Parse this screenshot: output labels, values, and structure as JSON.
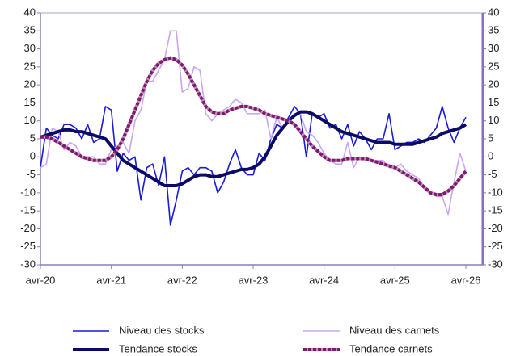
{
  "chart_data": {
    "type": "line",
    "categories": [
      "avr-20",
      null,
      null,
      null,
      null,
      null,
      null,
      null,
      null,
      null,
      null,
      null,
      "avr-21",
      null,
      null,
      null,
      null,
      null,
      null,
      null,
      null,
      null,
      null,
      null,
      "avr-22",
      null,
      null,
      null,
      null,
      null,
      null,
      null,
      null,
      null,
      null,
      null,
      "avr-23",
      null,
      null,
      null,
      null,
      null,
      null,
      null,
      null,
      null,
      null,
      null,
      "avr-24",
      null,
      null,
      null,
      null,
      null,
      null,
      null,
      null,
      null,
      null,
      null,
      "avr-25",
      null,
      null,
      null,
      null,
      null,
      null,
      null,
      null,
      null,
      null,
      null,
      "avr-26"
    ],
    "series": [
      {
        "name": "Niveau des stocks",
        "color": "#1a1ad8",
        "style": "thin",
        "values": [
          -3,
          8,
          6,
          5,
          9,
          9,
          8,
          5,
          9,
          4,
          5,
          14,
          13,
          -4,
          1,
          -1,
          0,
          -12,
          -3,
          -2,
          -8,
          0,
          -19,
          -12,
          -4,
          -3,
          -5,
          -3,
          -3,
          -4,
          -10,
          -7,
          -2,
          2,
          -3,
          -5,
          -5,
          1,
          -1,
          5,
          9,
          8,
          11,
          14,
          12,
          0,
          12,
          11,
          12,
          8,
          9,
          5,
          9,
          3,
          7,
          5,
          2,
          5,
          5,
          12,
          2,
          3,
          4,
          4,
          5,
          4,
          6,
          8,
          14,
          8,
          4,
          8,
          11
        ]
      },
      {
        "name": "Niveau des carnets",
        "color": "#c8a6f0",
        "style": "thin",
        "values": [
          -3,
          -2,
          8,
          7,
          2,
          4,
          3,
          0,
          0,
          0,
          -2,
          -2,
          2,
          3,
          4,
          1,
          10,
          13,
          21,
          21,
          24,
          27,
          35,
          35,
          18,
          19,
          25,
          24,
          12,
          10,
          12,
          13,
          14,
          16,
          15,
          12,
          12,
          12,
          13,
          5,
          11,
          8,
          10,
          12,
          12,
          7,
          6,
          4,
          1,
          -1,
          -2,
          -2,
          4,
          -3,
          0,
          -1,
          -1,
          -1,
          -1,
          -3,
          -3,
          -2,
          -4,
          -5,
          -6,
          -9,
          -10,
          -11,
          -11,
          -16,
          -7,
          1,
          -4
        ]
      },
      {
        "name": "Tendance stocks",
        "color": "#0b0b66",
        "style": "bold",
        "values": [
          5.5,
          6,
          6.5,
          7,
          7.5,
          7.5,
          7,
          7,
          6.5,
          6,
          5.5,
          5,
          3,
          1,
          -1,
          -2,
          -3,
          -4,
          -5,
          -6,
          -7,
          -8,
          -8,
          -8,
          -7.5,
          -6.5,
          -5.5,
          -5,
          -5,
          -5.5,
          -5.5,
          -5,
          -4.5,
          -4,
          -3.5,
          -3.5,
          -3,
          -2,
          0,
          3,
          6,
          8,
          10,
          11.5,
          12.5,
          12.5,
          12,
          11,
          10,
          9,
          8,
          7,
          6.5,
          6,
          5.5,
          5,
          4.5,
          4,
          4,
          4,
          3.5,
          3.5,
          3.5,
          3.5,
          4,
          4.5,
          5,
          5.5,
          6.5,
          7,
          7.5,
          8,
          9
        ]
      },
      {
        "name": "Tendance carnets",
        "color": "#7b1a6e",
        "style": "dashed",
        "values": [
          5.5,
          5.5,
          5,
          4,
          3,
          2,
          1,
          0,
          -0.5,
          -1,
          -1,
          -1,
          0,
          2,
          5,
          9,
          13,
          17,
          21,
          24,
          26,
          27,
          27.5,
          27,
          25.5,
          23,
          20,
          17,
          14,
          12.5,
          12,
          12,
          13,
          13.5,
          14,
          14,
          13.5,
          13,
          12,
          11.5,
          11,
          10.5,
          10,
          9,
          7,
          5,
          3,
          1.5,
          0,
          -1,
          -1,
          -1,
          -0.5,
          -0.5,
          -0.5,
          -0.5,
          -1,
          -1.5,
          -2,
          -2.5,
          -3,
          -4,
          -5,
          -6,
          -7,
          -8.5,
          -10,
          -10.5,
          -10.5,
          -9.5,
          -8,
          -6,
          -4
        ]
      }
    ],
    "ylim": [
      -30,
      40
    ],
    "yticks": [
      -30,
      -25,
      -20,
      -15,
      -10,
      -5,
      0,
      5,
      10,
      15,
      20,
      25,
      30,
      35,
      40
    ],
    "y2lim": [
      -30,
      40
    ],
    "y2ticks": [
      -30,
      -25,
      -20,
      -15,
      -10,
      -5,
      0,
      5,
      10,
      15,
      20,
      25,
      30,
      35,
      40
    ],
    "grid": false,
    "legend": "bottom"
  }
}
